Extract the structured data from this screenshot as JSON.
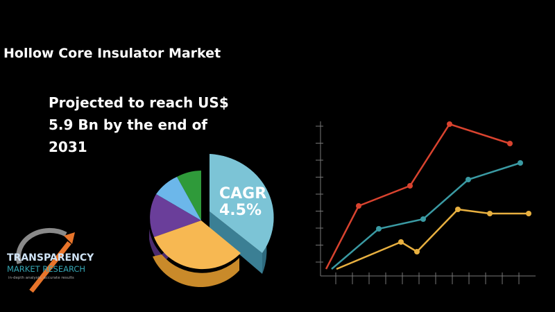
{
  "header": {
    "title": "Hollow Core Insulator Market"
  },
  "projection": {
    "text": "Projected to reach US$ 5.9 Bn by the end of 2031"
  },
  "cagr": {
    "label": "CAGR",
    "value": "4.5%"
  },
  "logo": {
    "name": "TRANSPARENCY",
    "subname": "MARKET RESEARCH",
    "tagline": "in-depth analysis, accurate results"
  }
}
